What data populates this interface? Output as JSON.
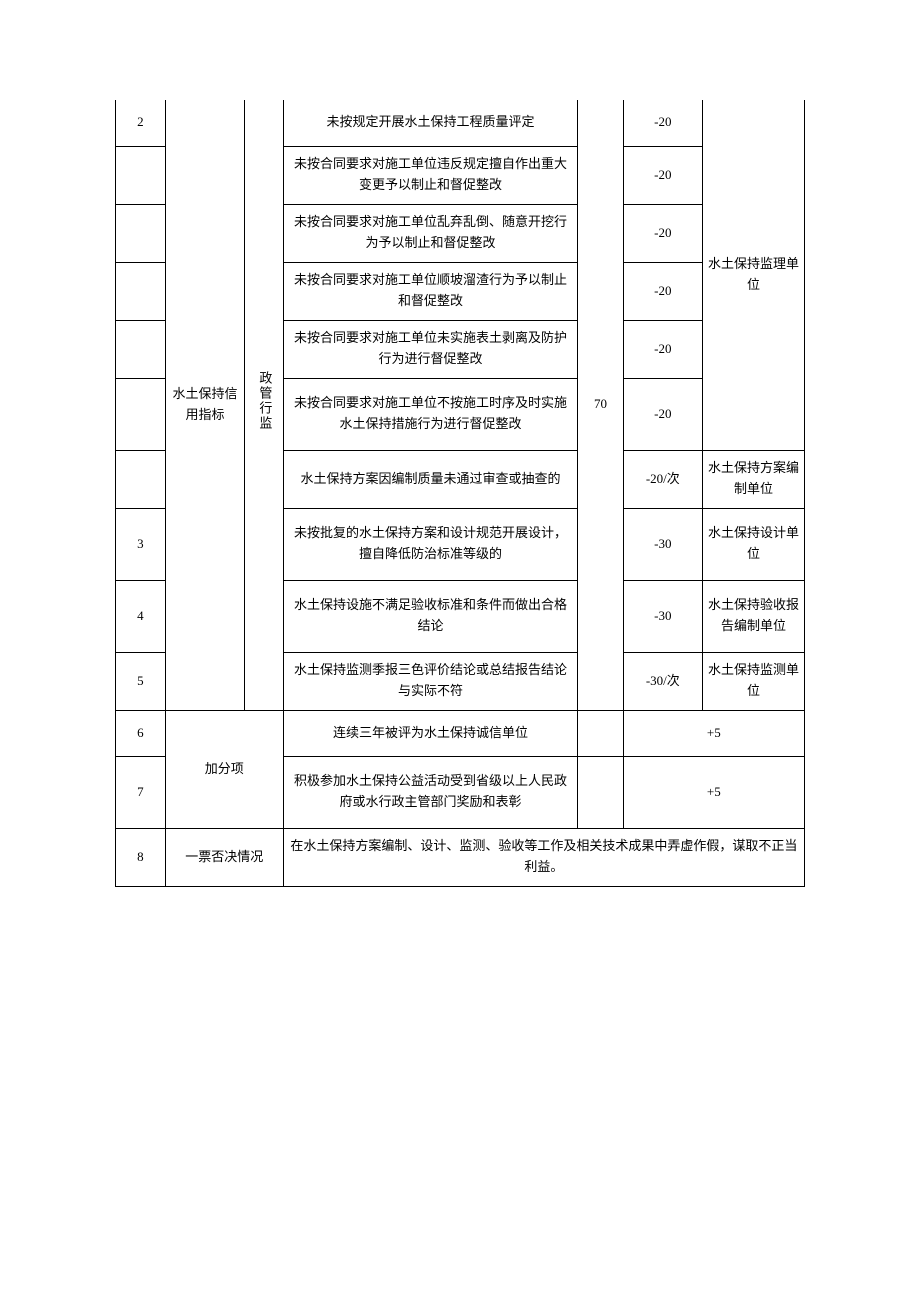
{
  "category": {
    "label": "水土保持信用指标",
    "sublabel": "政管行监",
    "score": "70"
  },
  "rows": [
    {
      "idx": "2",
      "desc": "未按规定开展水土保持工程质量评定",
      "deduct": "-20"
    },
    {
      "idx": "",
      "desc": "未按合同要求对施工单位违反规定擅自作出重大变更予以制止和督促整改",
      "deduct": "-20"
    },
    {
      "idx": "",
      "desc": "未按合同要求对施工单位乱弃乱倒、随意开挖行为予以制止和督促整改",
      "deduct": "-20"
    },
    {
      "idx": "",
      "desc": "未按合同要求对施工单位顺坡溜渣行为予以制止和督促整改",
      "deduct": "-20"
    },
    {
      "idx": "",
      "desc": "未按合同要求对施工单位未实施表土剥离及防护行为进行督促整改",
      "deduct": "-20"
    },
    {
      "idx": "",
      "desc": "未按合同要求对施工单位不按施工时序及时实施水土保持措施行为进行督促整改",
      "deduct": "-20"
    },
    {
      "idx": "",
      "desc": "水土保持方案因编制质量未通过审查或抽查的",
      "deduct": "-20/次",
      "unit": "水土保持方案编制单位"
    },
    {
      "idx": "3",
      "desc": "未按批复的水土保持方案和设计规范开展设计，擅自降低防治标准等级的",
      "deduct": "-30",
      "unit": "水土保持设计单位"
    },
    {
      "idx": "4",
      "desc": "水土保持设施不满足验收标准和条件而做出合格结论",
      "deduct": "-30",
      "unit": "水土保持验收报告编制单位"
    },
    {
      "idx": "5",
      "desc": "水土保持监测季报三色评价结论或总结报告结论与实际不符",
      "deduct": "-30/次",
      "unit": "水土保持监测单位"
    }
  ],
  "unit_supervision": "水土保持监理单位",
  "bonus": {
    "label": "加分项",
    "items": [
      {
        "idx": "6",
        "desc": "连续三年被评为水土保持诚信单位",
        "score": "+5"
      },
      {
        "idx": "7",
        "desc": "积极参加水土保持公益活动受到省级以上人民政府或水行政主管部门奖励和表彰",
        "score": "+5"
      }
    ]
  },
  "veto": {
    "idx": "8",
    "label": "一票否决情况",
    "desc": "在水土保持方案编制、设计、监测、验收等工作及相关技术成果中弄虚作假，谋取不正当利益。"
  }
}
